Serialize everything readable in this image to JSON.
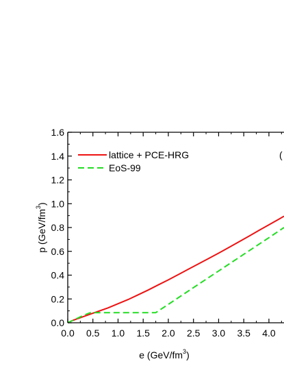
{
  "chart_data": {
    "type": "line",
    "title": "",
    "panel_label": "(",
    "xlabel": {
      "main": "e (GeV/fm",
      "sup": "3",
      "close": ")"
    },
    "ylabel": {
      "main": "p (GeV/fm",
      "sup": "3",
      "close": ")"
    },
    "xlim": [
      0.0,
      4.3
    ],
    "ylim": [
      0.0,
      1.6
    ],
    "xticks": [
      "0.0",
      "0.5",
      "1.0",
      "1.5",
      "2.0",
      "2.5",
      "3.0",
      "3.5",
      "4.0"
    ],
    "yticks": [
      "0.0",
      "0.2",
      "0.4",
      "0.6",
      "0.8",
      "1.0",
      "1.2",
      "1.4",
      "1.6"
    ],
    "grid": false,
    "legend_position": "top-left",
    "series": [
      {
        "name": "lattice + PCE-HRG",
        "color": "#ee1111",
        "style": "solid",
        "x": [
          0.0,
          0.1,
          0.2,
          0.3,
          0.4,
          0.5,
          0.6,
          0.8,
          1.0,
          1.2,
          1.4,
          1.6,
          1.8,
          2.0,
          2.2,
          2.4,
          2.6,
          2.8,
          3.0,
          3.2,
          3.4,
          3.6,
          3.8,
          4.0,
          4.2,
          4.3
        ],
        "y": [
          0.0,
          0.02,
          0.035,
          0.05,
          0.065,
          0.08,
          0.095,
          0.125,
          0.16,
          0.195,
          0.235,
          0.275,
          0.318,
          0.36,
          0.405,
          0.45,
          0.495,
          0.54,
          0.585,
          0.632,
          0.679,
          0.727,
          0.775,
          0.823,
          0.871,
          0.895
        ]
      },
      {
        "name": "EoS-99",
        "color": "#22dd22",
        "style": "dashed",
        "x": [
          0.0,
          0.1,
          0.2,
          0.3,
          0.45,
          1.75,
          2.0,
          2.5,
          3.0,
          3.5,
          4.0,
          4.3
        ],
        "y": [
          0.0,
          0.02,
          0.04,
          0.06,
          0.085,
          0.085,
          0.155,
          0.295,
          0.435,
          0.575,
          0.715,
          0.8
        ]
      }
    ]
  }
}
